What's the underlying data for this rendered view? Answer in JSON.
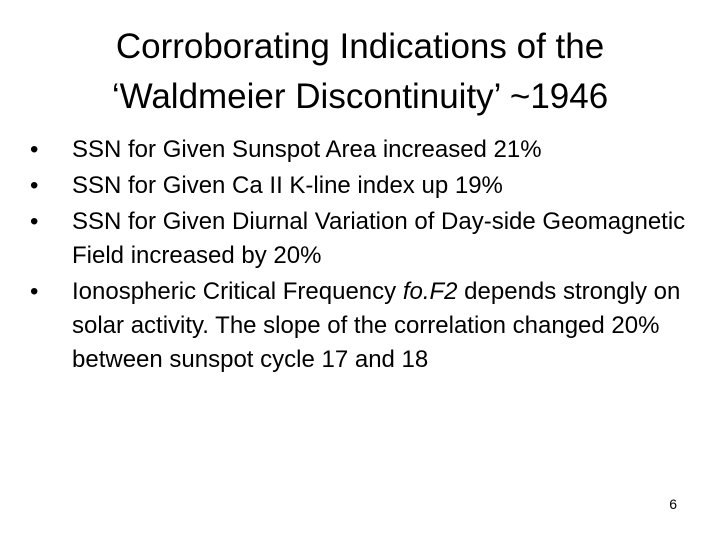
{
  "title": [
    "Corroborating Indications of the",
    "‘Waldmeier Discontinuity’ ~1946"
  ],
  "bullets": [
    [
      "SSN for Given Sunspot Area increased 21%"
    ],
    [
      "SSN for Given Ca II K-line index up 19%"
    ],
    [
      "SSN for Given Diurnal Variation of Day-side Geomagnetic Field increased by 20%"
    ],
    [
      "Ionospheric Critical Frequency ",
      "fo.F2",
      " depends strongly on solar activity. The slope of the correlation changed 20% between sunspot cycle 17 and 18"
    ]
  ],
  "page_number": "6"
}
